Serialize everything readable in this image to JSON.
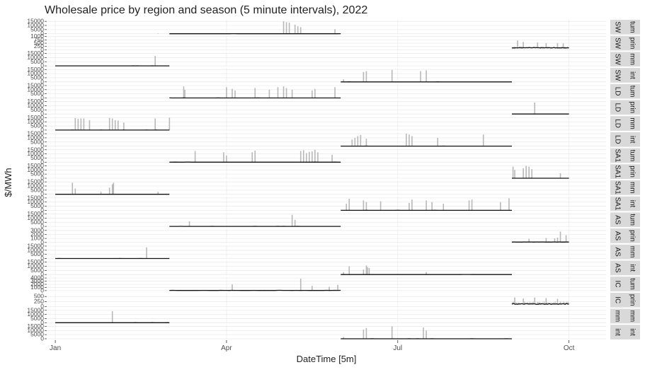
{
  "chart_data": {
    "type": "line",
    "title": "Wholesale price by region and season  (5 minute intervals), 2022",
    "xlabel": "DateTime [5m]",
    "ylabel": "$/MWh",
    "x_ticks": [
      "Jan",
      "Apr",
      "Jul",
      "Oct"
    ],
    "x_tick_months": [
      0,
      3,
      6,
      9
    ],
    "x_range_months": [
      -0.15,
      9.65
    ],
    "grid": true,
    "panels": [
      {
        "strip": [
          "SW",
          "tum"
        ],
        "ticks": [
          "15000",
          "10000",
          "5000",
          "0"
        ],
        "ymax": 16000,
        "season": [
          2.0,
          5.0
        ],
        "baseline": 1,
        "spikes": [
          [
            4.0,
            15000
          ],
          [
            4.05,
            14000
          ],
          [
            4.1,
            13500
          ],
          [
            4.2,
            11000
          ],
          [
            4.25,
            9000
          ],
          [
            4.3,
            8000
          ],
          [
            1.8,
            500
          ],
          [
            3.0,
            600
          ],
          [
            4.9,
            5500
          ]
        ]
      },
      {
        "strip": [
          "SW",
          "prin"
        ],
        "ticks": [
          "1000",
          "750",
          "500",
          "250",
          "0"
        ],
        "ymax": 1000,
        "season": [
          8.0,
          9.0
        ],
        "baseline": 150,
        "noise": 110,
        "spikes": [
          [
            8.1,
            700
          ],
          [
            8.2,
            600
          ],
          [
            8.45,
            550
          ],
          [
            8.6,
            500
          ],
          [
            8.8,
            500
          ],
          [
            8.9,
            480
          ]
        ]
      },
      {
        "strip": [
          "SW",
          "mm"
        ],
        "ticks": [
          "15000",
          "10000",
          "5000",
          "0"
        ],
        "ymax": 16000,
        "season": [
          0.0,
          2.0
        ],
        "baseline": 1,
        "spikes": [
          [
            1.75,
            12000
          ]
        ]
      },
      {
        "strip": [
          "SW",
          "int"
        ],
        "ticks": [
          "15000",
          "10000",
          "5000",
          "0"
        ],
        "ymax": 16000,
        "season": [
          5.0,
          8.0
        ],
        "baseline": 1,
        "spikes": [
          [
            5.05,
            3000
          ],
          [
            5.4,
            12000
          ],
          [
            5.45,
            13000
          ],
          [
            5.9,
            14500
          ],
          [
            6.4,
            13000
          ],
          [
            6.5,
            14000
          ]
        ]
      },
      {
        "strip": [
          "LD",
          "tum"
        ],
        "ticks": [
          "15000",
          "10000",
          "5000",
          "0"
        ],
        "ymax": 16000,
        "season": [
          2.0,
          5.0
        ],
        "baseline": 1,
        "spikes": [
          [
            2.25,
            14000
          ],
          [
            2.27,
            10000
          ],
          [
            3.0,
            13000
          ],
          [
            3.1,
            11000
          ],
          [
            3.15,
            9000
          ],
          [
            3.5,
            12000
          ],
          [
            3.75,
            10000
          ],
          [
            3.9,
            13000
          ],
          [
            4.0,
            14000
          ],
          [
            4.05,
            12000
          ],
          [
            4.15,
            10000
          ],
          [
            4.5,
            9000
          ],
          [
            4.55,
            11000
          ],
          [
            4.9,
            13000
          ]
        ]
      },
      {
        "strip": [
          "LD",
          "prin"
        ],
        "ticks": [
          "15000",
          "10000",
          "5000",
          "0"
        ],
        "ymax": 16000,
        "season": [
          8.0,
          9.0
        ],
        "baseline": 1,
        "spikes": [
          [
            8.4,
            14000
          ]
        ]
      },
      {
        "strip": [
          "LD",
          "mm"
        ],
        "ticks": [
          "15000",
          "10000",
          "5000",
          "0"
        ],
        "ymax": 16000,
        "season": [
          0.0,
          2.0
        ],
        "baseline": 1,
        "spikes": [
          [
            0.35,
            14500
          ],
          [
            0.4,
            13500
          ],
          [
            0.45,
            14000
          ],
          [
            0.5,
            14000
          ],
          [
            0.6,
            12000
          ],
          [
            0.95,
            14500
          ],
          [
            1.0,
            14000
          ],
          [
            1.05,
            12000
          ],
          [
            1.1,
            11500
          ],
          [
            1.2,
            9000
          ],
          [
            1.75,
            14000
          ],
          [
            2.0,
            15000
          ]
        ]
      },
      {
        "strip": [
          "LD",
          "int"
        ],
        "ticks": [
          "15000",
          "10000",
          "5000",
          "0"
        ],
        "ymax": 16000,
        "season": [
          5.0,
          8.0
        ],
        "baseline": 1,
        "spikes": [
          [
            5.2,
            8000
          ],
          [
            5.25,
            10000
          ],
          [
            5.3,
            12000
          ],
          [
            5.35,
            13500
          ],
          [
            5.45,
            9000
          ],
          [
            6.15,
            15000
          ],
          [
            6.2,
            14000
          ],
          [
            6.25,
            12000
          ],
          [
            6.7,
            10000
          ],
          [
            7.5,
            14000
          ]
        ]
      },
      {
        "strip": [
          "SA1",
          "tum"
        ],
        "ticks": [
          "15000",
          "10000",
          "5000",
          "0"
        ],
        "ymax": 16000,
        "season": [
          2.0,
          5.0
        ],
        "baseline": 1,
        "spikes": [
          [
            2.45,
            13500
          ],
          [
            2.95,
            12000
          ],
          [
            3.0,
            8000
          ],
          [
            3.45,
            12000
          ],
          [
            3.5,
            14000
          ],
          [
            4.3,
            13500
          ],
          [
            4.35,
            14500
          ],
          [
            4.4,
            11000
          ],
          [
            4.45,
            12500
          ],
          [
            4.5,
            13000
          ],
          [
            4.55,
            15000
          ],
          [
            4.6,
            12000
          ],
          [
            4.85,
            9000
          ]
        ]
      },
      {
        "strip": [
          "SA1",
          "prin"
        ],
        "ticks": [
          "15000",
          "10000",
          "5000",
          "0"
        ],
        "ymax": 16000,
        "season": [
          8.0,
          9.0
        ],
        "baseline": 1,
        "spikes": [
          [
            8.02,
            14000
          ],
          [
            8.05,
            10000
          ],
          [
            8.2,
            12000
          ],
          [
            8.25,
            15000
          ],
          [
            8.3,
            14000
          ],
          [
            8.35,
            11000
          ],
          [
            8.85,
            6000
          ]
        ]
      },
      {
        "strip": [
          "SA1",
          "mm"
        ],
        "ticks": [
          "15000",
          "10000",
          "5000",
          "0"
        ],
        "ymax": 16000,
        "season": [
          0.0,
          2.0
        ],
        "baseline": 1,
        "spikes": [
          [
            0.3,
            14000
          ],
          [
            0.35,
            7000
          ],
          [
            0.8,
            3000
          ],
          [
            0.95,
            8000
          ],
          [
            1.0,
            12000
          ],
          [
            1.02,
            14000
          ],
          [
            1.8,
            3000
          ]
        ]
      },
      {
        "strip": [
          "SA1",
          "int"
        ],
        "ticks": [
          "15000",
          "10000",
          "5000",
          "0"
        ],
        "ymax": 16000,
        "season": [
          5.0,
          8.0
        ],
        "baseline": 1,
        "spikes": [
          [
            5.1,
            8000
          ],
          [
            5.15,
            14000
          ],
          [
            5.4,
            12000
          ],
          [
            5.45,
            10000
          ],
          [
            5.7,
            11000
          ],
          [
            6.2,
            9000
          ],
          [
            6.25,
            13000
          ],
          [
            6.5,
            12000
          ],
          [
            6.6,
            10000
          ],
          [
            6.8,
            8000
          ],
          [
            7.25,
            12000
          ],
          [
            7.3,
            13000
          ],
          [
            7.8,
            10000
          ],
          [
            7.95,
            14500
          ]
        ]
      },
      {
        "strip": [
          "AS",
          "tum"
        ],
        "ticks": [
          "15000",
          "10000",
          "5000",
          "0"
        ],
        "ymax": 16000,
        "season": [
          2.0,
          5.0
        ],
        "baseline": 1,
        "spikes": [
          [
            2.35,
            6000
          ],
          [
            4.15,
            14000
          ],
          [
            4.2,
            8000
          ]
        ]
      },
      {
        "strip": [
          "AS",
          "prin"
        ],
        "ticks": [
          "3000",
          "2000",
          "1000",
          "0"
        ],
        "ymax": 3300,
        "season": [
          8.0,
          9.0
        ],
        "baseline": 100,
        "noise": 150,
        "spikes": [
          [
            8.3,
            900
          ],
          [
            8.6,
            1100
          ],
          [
            8.75,
            1000
          ],
          [
            8.8,
            1200
          ],
          [
            8.85,
            2700
          ],
          [
            8.95,
            1800
          ]
        ]
      },
      {
        "strip": [
          "AS",
          "mm"
        ],
        "ticks": [
          "15000",
          "10000",
          "5000",
          "0"
        ],
        "ymax": 16000,
        "season": [
          0.0,
          2.0
        ],
        "baseline": 1,
        "spikes": [
          [
            1.6,
            13500
          ]
        ]
      },
      {
        "strip": [
          "AS",
          "int"
        ],
        "ticks": [
          "15000",
          "10000",
          "5000",
          "0"
        ],
        "ymax": 16000,
        "season": [
          5.0,
          8.0
        ],
        "baseline": 1,
        "spikes": [
          [
            5.05,
            3000
          ],
          [
            5.15,
            10000
          ],
          [
            5.4,
            6000
          ],
          [
            5.45,
            11000
          ],
          [
            5.47,
            9000
          ],
          [
            5.5,
            8000
          ],
          [
            6.5,
            3000
          ]
        ]
      },
      {
        "strip": [
          "IC",
          "tum"
        ],
        "ticks": [
          "4000",
          "3000",
          "2000",
          "1000",
          "0"
        ],
        "ymax": 4200,
        "season": [
          2.0,
          5.0
        ],
        "baseline": 60,
        "noise": 200,
        "spikes": [
          [
            3.1,
            2000
          ],
          [
            4.3,
            3800
          ],
          [
            4.5,
            1500
          ],
          [
            4.8,
            1200
          ],
          [
            4.95,
            1800
          ]
        ]
      },
      {
        "strip": [
          "IC",
          "prin"
        ],
        "ticks": [
          "500",
          "250",
          "0"
        ],
        "ymax": 650,
        "season": [
          8.0,
          9.0
        ],
        "baseline": 130,
        "noise": 140,
        "spikes": [
          [
            8.05,
            450
          ],
          [
            8.2,
            400
          ],
          [
            8.4,
            450
          ],
          [
            8.6,
            420
          ],
          [
            8.8,
            380
          ]
        ]
      },
      {
        "strip": [
          "mm",
          "mm"
        ],
        "ticks": [
          "15000",
          "10000",
          "5000",
          "0"
        ],
        "ymax": 16000,
        "season": [
          0.0,
          2.0
        ],
        "baseline": 1,
        "spikes": [
          [
            1.0,
            14000
          ]
        ]
      },
      {
        "strip": [
          "int",
          "int"
        ],
        "ticks": [
          "15000",
          "10000",
          "5000",
          "0"
        ],
        "ymax": 16000,
        "season": [
          5.0,
          8.0
        ],
        "baseline": 1,
        "spikes": [
          [
            5.05,
            2000
          ],
          [
            5.4,
            11000
          ],
          [
            5.45,
            13000
          ],
          [
            5.9,
            15000
          ],
          [
            6.45,
            13500
          ],
          [
            6.5,
            10000
          ]
        ]
      }
    ]
  }
}
